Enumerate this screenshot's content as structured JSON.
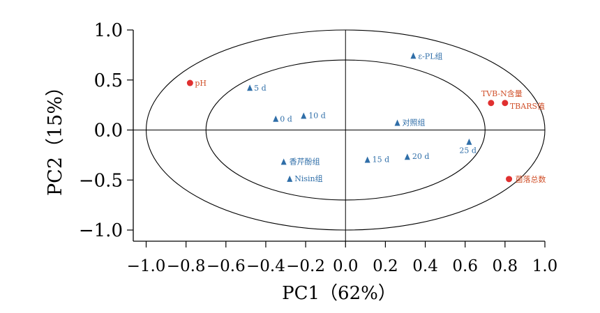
{
  "chart_data": {
    "type": "scatter",
    "xlabel": "PC1（62%）",
    "ylabel": "PC2（15%）",
    "xlim": [
      -1.1,
      1.0
    ],
    "ylim": [
      -1.1,
      1.0
    ],
    "x_ticks": [
      "−1.0",
      "−0.8",
      "−0.6",
      "−0.4",
      "−0.2",
      "0.0",
      "0.2",
      "0.4",
      "0.6",
      "0.8",
      "1.0"
    ],
    "y_ticks": [
      "1.0",
      "0.5",
      "0.0",
      "−0.5",
      "−1.0"
    ],
    "grid": false,
    "reference_circles": [
      1.0,
      0.7
    ],
    "colors": {
      "samples": "#2f6ea8",
      "variables": "#e03030",
      "variable_labels": "#d0502a",
      "sample_labels": "#2f6ea8"
    },
    "series": [
      {
        "marker": "triangle",
        "points": [
          {
            "label": "ε-PL组",
            "x": 0.34,
            "y": 0.74
          },
          {
            "label": "5 d",
            "x": -0.48,
            "y": 0.42
          },
          {
            "label": "0 d",
            "x": -0.35,
            "y": 0.11
          },
          {
            "label": "10 d",
            "x": -0.21,
            "y": 0.14
          },
          {
            "label": "对照组",
            "x": 0.26,
            "y": 0.07
          },
          {
            "label": "25 d",
            "x": 0.62,
            "y": -0.12
          },
          {
            "label": "香芹酚组",
            "x": -0.31,
            "y": -0.32
          },
          {
            "label": "15 d",
            "x": 0.11,
            "y": -0.3
          },
          {
            "label": "20 d",
            "x": 0.31,
            "y": -0.27
          },
          {
            "label": "Nisin组",
            "x": -0.28,
            "y": -0.49
          }
        ]
      },
      {
        "marker": "circle",
        "points": [
          {
            "label": "pH",
            "x": -0.78,
            "y": 0.47
          },
          {
            "label": "TVB-N含量",
            "x": 0.73,
            "y": 0.27
          },
          {
            "label": "TBARS值",
            "x": 0.8,
            "y": 0.27
          },
          {
            "label": "菌落总数",
            "x": 0.82,
            "y": -0.49
          }
        ]
      }
    ]
  }
}
